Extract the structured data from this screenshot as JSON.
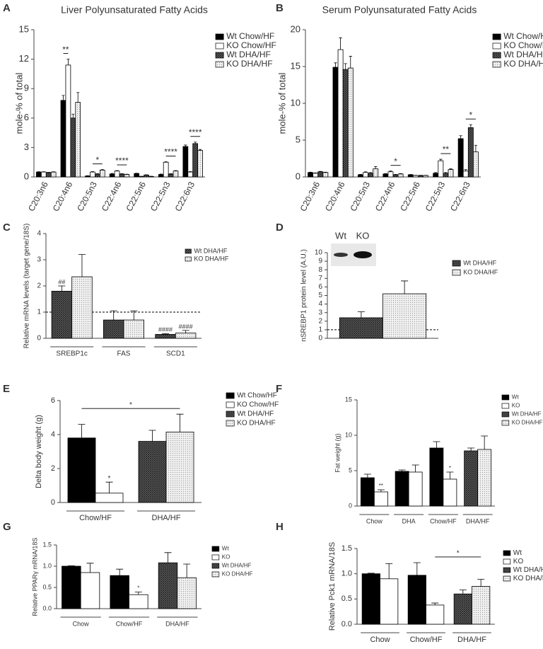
{
  "chart_data": [
    {
      "type": "bar",
      "label": "A",
      "title": "Liver Polyunsaturated Fatty Acids",
      "y_label": "mole-% of total",
      "categories": [
        "C20:3n6",
        "C20:4n6",
        "C20:5n3",
        "C22:4n6",
        "C22:5n6",
        "C22:5n3",
        "C22:6n3"
      ],
      "series": [
        {
          "name": "Wt Chow/HF",
          "color": "#000000",
          "pattern": "solid",
          "values": [
            0.5,
            7.8,
            0.1,
            0.3,
            0.35,
            0.25,
            3.1
          ],
          "errors": [
            0.03,
            0.5,
            0.02,
            0.05,
            0.03,
            0.05,
            0.15
          ]
        },
        {
          "name": "KO Chow/HF",
          "color": "#ffffff",
          "pattern": "solid",
          "values": [
            0.5,
            11.4,
            0.5,
            0.6,
            0.05,
            1.5,
            0.5
          ],
          "errors": [
            0.03,
            0.6,
            0.05,
            0.05,
            0.02,
            0.05,
            0.05
          ]
        },
        {
          "name": "Wt DHA/HF",
          "color": "#555555",
          "pattern": "hatch",
          "values": [
            0.45,
            6.0,
            0.3,
            0.3,
            0.2,
            0.3,
            3.4
          ],
          "errors": [
            0.03,
            0.4,
            0.03,
            0.03,
            0.02,
            0.03,
            0.15
          ]
        },
        {
          "name": "KO DHA/HF",
          "color": "#dddddd",
          "pattern": "dots",
          "values": [
            0.5,
            7.6,
            0.7,
            0.25,
            0.05,
            0.6,
            2.7
          ],
          "errors": [
            0.03,
            1.0,
            0.05,
            0.03,
            0.02,
            0.05,
            0.1
          ]
        }
      ],
      "annotations": [
        {
          "text": "**",
          "bars": [
            [
              1,
              0
            ],
            [
              1,
              1
            ]
          ]
        },
        {
          "text": "*",
          "bars": [
            [
              2,
              1
            ],
            [
              2,
              3
            ]
          ]
        },
        {
          "text": "****",
          "bars": [
            [
              3,
              1
            ],
            [
              3,
              3
            ]
          ]
        },
        {
          "text": "****",
          "bars": [
            [
              5,
              1
            ],
            [
              5,
              3
            ]
          ]
        },
        {
          "text": "****",
          "bars": [
            [
              6,
              1
            ],
            [
              6,
              3
            ]
          ]
        }
      ],
      "ylim": [
        0,
        15
      ],
      "yticks": [
        0,
        3,
        6,
        9,
        12,
        15
      ]
    },
    {
      "type": "bar",
      "label": "B",
      "title": "Serum Polyunsaturated Fatty Acids",
      "y_label": "mole-% of total",
      "categories": [
        "C20:3n6",
        "C20:4n6",
        "C20:5n3",
        "C22:4n6",
        "C22:5n6",
        "C22:5n3",
        "C22:6n3"
      ],
      "series": [
        {
          "name": "Wt Chow/HF",
          "color": "#000000",
          "pattern": "solid",
          "values": [
            0.6,
            14.9,
            0.3,
            0.4,
            0.3,
            0.5,
            5.2
          ],
          "errors": [
            0.05,
            0.6,
            0.05,
            0.05,
            0.03,
            0.1,
            0.4
          ]
        },
        {
          "name": "KO Chow/HF",
          "color": "#ffffff",
          "pattern": "solid",
          "values": [
            0.5,
            17.3,
            0.6,
            0.7,
            0.2,
            2.2,
            0.8
          ],
          "errors": [
            0.05,
            1.6,
            0.1,
            0.1,
            0.03,
            0.2,
            0.2
          ]
        },
        {
          "name": "Wt DHA/HF",
          "color": "#555555",
          "pattern": "hatch",
          "values": [
            0.7,
            14.6,
            0.5,
            0.3,
            0.2,
            0.5,
            6.7
          ],
          "errors": [
            0.05,
            0.8,
            0.1,
            0.05,
            0.03,
            0.1,
            0.4
          ]
        },
        {
          "name": "KO DHA/HF",
          "color": "#dddddd",
          "pattern": "dots",
          "values": [
            0.6,
            14.8,
            1.1,
            0.4,
            0.2,
            1.0,
            3.4
          ],
          "errors": [
            0.05,
            1.6,
            0.3,
            0.05,
            0.03,
            0.1,
            0.9
          ]
        }
      ],
      "annotations": [
        {
          "text": "*",
          "bars": [
            [
              3,
              1
            ],
            [
              3,
              3
            ]
          ]
        },
        {
          "text": "**",
          "bars": [
            [
              5,
              1
            ],
            [
              5,
              3
            ]
          ]
        },
        {
          "text": "*",
          "bars": [
            [
              6,
              1
            ],
            [
              6,
              3
            ]
          ]
        }
      ],
      "ylim": [
        0,
        20
      ],
      "yticks": [
        0,
        5,
        10,
        15,
        20
      ]
    },
    {
      "type": "bar",
      "label": "C",
      "y_label": "Relative mRNA levels (target gene/18S)",
      "categories": [
        "SREBP1c",
        "FAS",
        "SCD1"
      ],
      "series": [
        {
          "name": "Wt DHA/HF",
          "color": "#555555",
          "pattern": "hatch",
          "values": [
            1.8,
            0.7,
            0.15
          ],
          "errors": [
            0.2,
            0.35,
            0.03
          ]
        },
        {
          "name": "KO DHA/HF",
          "color": "#dddddd",
          "pattern": "dots",
          "values": [
            2.35,
            0.7,
            0.2
          ],
          "errors": [
            0.85,
            0.35,
            0.1
          ]
        }
      ],
      "annotations": [
        {
          "text": "##",
          "bars": [
            [
              0,
              0
            ]
          ]
        },
        {
          "text": "####",
          "bars": [
            [
              2,
              0
            ]
          ]
        },
        {
          "text": "####",
          "bars": [
            [
              2,
              1
            ]
          ]
        }
      ],
      "refline": 1,
      "ylim": [
        0,
        4
      ],
      "yticks": [
        0,
        1,
        2,
        3,
        4
      ]
    },
    {
      "type": "bar",
      "label": "D",
      "y_label": "nSREBP1 protein level (A.U.)",
      "blot_labels": [
        "Wt",
        "KO"
      ],
      "categories": [
        null
      ],
      "series": [
        {
          "name": "Wt DHA/HF",
          "color": "#555555",
          "pattern": "hatch",
          "values": [
            2.4
          ],
          "errors": [
            0.7
          ]
        },
        {
          "name": "KO DHA/HF",
          "color": "#dddddd",
          "pattern": "dots",
          "values": [
            5.2
          ],
          "errors": [
            1.5
          ]
        }
      ],
      "annotations": [],
      "refline": 1,
      "ylim": [
        0,
        10
      ],
      "yticks": [
        0,
        1,
        2,
        3,
        4,
        5,
        6,
        7,
        8,
        9,
        10
      ]
    },
    {
      "type": "bar",
      "label": "E",
      "y_label": "Delta body weight (g)",
      "categories": [
        "Chow/HF",
        "DHA/HF"
      ],
      "series": [
        {
          "name": "Wt Chow/HF",
          "color": "#000000",
          "pattern": "solid",
          "values": [
            3.8,
            null
          ],
          "errors": [
            0.8,
            null
          ]
        },
        {
          "name": "KO Chow/HF",
          "color": "#ffffff",
          "pattern": "solid",
          "values": [
            0.55,
            null
          ],
          "errors": [
            0.65,
            null
          ]
        },
        {
          "name": "Wt DHA/HF",
          "color": "#555555",
          "pattern": "hatch",
          "values": [
            null,
            3.6
          ],
          "errors": [
            null,
            0.65
          ]
        },
        {
          "name": "KO DHA/HF",
          "color": "#dddddd",
          "pattern": "dots",
          "values": [
            null,
            4.15
          ],
          "errors": [
            null,
            1.05
          ]
        }
      ],
      "annotations": [
        {
          "text": "*",
          "bars": [
            [
              0,
              1
            ]
          ]
        },
        {
          "text": "*",
          "bars": [
            [
              0,
              0
            ],
            [
              1,
              3
            ]
          ]
        }
      ],
      "ylim": [
        0,
        6
      ],
      "yticks": [
        0,
        2,
        4,
        6
      ]
    },
    {
      "type": "bar",
      "label": "F",
      "y_label": "Fat weight (g)",
      "categories": [
        "Chow",
        "DHA",
        "Chow/HF",
        "DHA/HF"
      ],
      "series": [
        {
          "name": "Wt",
          "color": "#000000",
          "pattern": "solid",
          "values": [
            4.0,
            4.9,
            8.2,
            null
          ],
          "errors": [
            0.5,
            0.2,
            0.9,
            null
          ]
        },
        {
          "name": "KO",
          "color": "#ffffff",
          "pattern": "solid",
          "values": [
            2.0,
            4.8,
            3.8,
            null
          ],
          "errors": [
            0.3,
            1.0,
            1.0,
            null
          ]
        },
        {
          "name": "Wt DHA/HF",
          "color": "#555555",
          "pattern": "hatch",
          "values": [
            null,
            null,
            null,
            7.8
          ],
          "errors": [
            null,
            null,
            null,
            0.4
          ]
        },
        {
          "name": "KO DHA/HF",
          "color": "#dddddd",
          "pattern": "dots",
          "values": [
            null,
            null,
            null,
            8.0
          ],
          "errors": [
            null,
            null,
            null,
            1.9
          ]
        }
      ],
      "annotations": [
        {
          "text": "**",
          "bars": [
            [
              0,
              1
            ]
          ]
        },
        {
          "text": "*",
          "bars": [
            [
              2,
              1
            ]
          ]
        }
      ],
      "ylim": [
        0,
        15
      ],
      "yticks": [
        0,
        5,
        10,
        15
      ]
    },
    {
      "type": "bar",
      "label": "G",
      "y_label": "Relative PPARγ mRNA/18S",
      "categories": [
        "Chow",
        "Chow/HF",
        "DHA/HF"
      ],
      "series": [
        {
          "name": "Wt",
          "color": "#000000",
          "pattern": "solid",
          "values": [
            1.0,
            0.78,
            null
          ],
          "errors": [
            0.01,
            0.15,
            null
          ]
        },
        {
          "name": "KO",
          "color": "#ffffff",
          "pattern": "solid",
          "values": [
            0.85,
            0.33,
            null
          ],
          "errors": [
            0.22,
            0.06,
            null
          ]
        },
        {
          "name": "Wt DHA/HF",
          "color": "#555555",
          "pattern": "hatch",
          "values": [
            null,
            null,
            1.08
          ],
          "errors": [
            null,
            null,
            0.24
          ]
        },
        {
          "name": "KO DHA/HF",
          "color": "#dddddd",
          "pattern": "dots",
          "values": [
            null,
            null,
            0.73
          ],
          "errors": [
            null,
            null,
            0.32
          ]
        }
      ],
      "annotations": [
        {
          "text": "*",
          "bars": [
            [
              1,
              1
            ]
          ]
        }
      ],
      "ylim": [
        0,
        1.5
      ],
      "yticks": [
        {
          "value": 0,
          "label": "0.0"
        },
        {
          "value": 0.5,
          "label": "0.5"
        },
        {
          "value": 1,
          "label": "1.0"
        },
        {
          "value": 1.5,
          "label": "1.5"
        }
      ]
    },
    {
      "type": "bar",
      "label": "H",
      "y_label": "Relative Pck1 mRNA/18S",
      "categories": [
        "Chow",
        "Chow/HF",
        "DHA/HF"
      ],
      "series": [
        {
          "name": "Wt",
          "color": "#000000",
          "pattern": "solid",
          "values": [
            1.0,
            0.97,
            null
          ],
          "errors": [
            0.01,
            0.25,
            null
          ]
        },
        {
          "name": "KO",
          "color": "#ffffff",
          "pattern": "solid",
          "values": [
            0.9,
            0.38,
            null
          ],
          "errors": [
            0.3,
            0.04,
            null
          ]
        },
        {
          "name": "Wt DHA/HF",
          "color": "#555555",
          "pattern": "hatch",
          "values": [
            null,
            null,
            0.6
          ],
          "errors": [
            null,
            null,
            0.08
          ]
        },
        {
          "name": "KO DHA/HF",
          "color": "#dddddd",
          "pattern": "dots",
          "values": [
            null,
            null,
            0.75
          ],
          "errors": [
            null,
            null,
            0.14
          ]
        }
      ],
      "annotations": [
        {
          "text": "*",
          "bars": [
            [
              1,
              1
            ],
            [
              2,
              3
            ]
          ]
        }
      ],
      "ylim": [
        0,
        1.5
      ],
      "yticks": [
        {
          "value": 0,
          "label": "0.0"
        },
        {
          "value": 0.5,
          "label": "0.5"
        },
        {
          "value": 1,
          "label": "1.0"
        },
        {
          "value": 1.5,
          "label": "1.5"
        }
      ]
    }
  ]
}
